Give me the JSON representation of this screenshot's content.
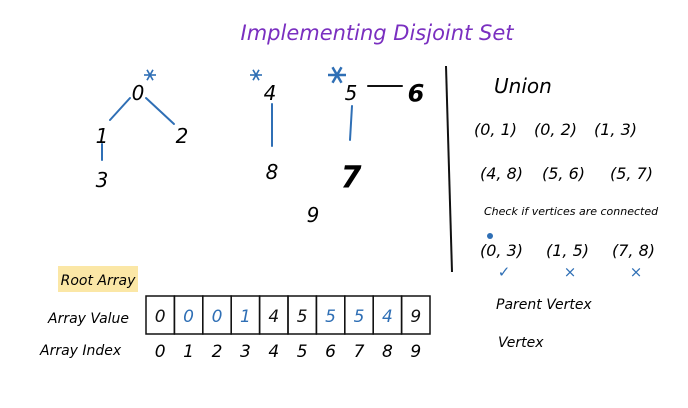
{
  "title": "Implementing Disjoint Set",
  "tree": {
    "nodes": [
      {
        "id": "n0",
        "label": "0",
        "root": true
      },
      {
        "id": "n1",
        "label": "1",
        "root": false
      },
      {
        "id": "n2",
        "label": "2",
        "root": false
      },
      {
        "id": "n3",
        "label": "3",
        "root": false
      },
      {
        "id": "n4",
        "label": "4",
        "root": true
      },
      {
        "id": "n8",
        "label": "8",
        "root": false
      },
      {
        "id": "n5",
        "label": "5",
        "root": true
      },
      {
        "id": "n6",
        "label": "6",
        "root": false
      },
      {
        "id": "n7",
        "label": "7",
        "root": false
      },
      {
        "id": "n9",
        "label": "9",
        "root": false
      }
    ],
    "edges": [
      {
        "from": "n0",
        "to": "n1"
      },
      {
        "from": "n0",
        "to": "n2"
      },
      {
        "from": "n1",
        "to": "n3"
      },
      {
        "from": "n4",
        "to": "n8"
      },
      {
        "from": "n5",
        "to": "n6"
      },
      {
        "from": "n5",
        "to": "n7"
      }
    ],
    "edge_color": "#2f6fb5",
    "root_marker_color": "#2f6fb5"
  },
  "union": {
    "heading": "Union",
    "rows": [
      [
        "(0, 1)",
        "(0, 2)",
        "(1, 3)"
      ],
      [
        "(4, 8)",
        "(5, 6)",
        "(5, 7)"
      ]
    ]
  },
  "check": {
    "heading": "Check if vertices are connected",
    "pairs": [
      {
        "text": "(0, 3)",
        "mark": "✓"
      },
      {
        "text": "(1, 5)",
        "mark": "×"
      },
      {
        "text": "(7, 8)",
        "mark": "×"
      }
    ],
    "mark_color": "#2f6fb5"
  },
  "root_array": {
    "label": "Root Array",
    "highlight_color": "#fbe7a6",
    "value_label": "Array Value",
    "index_label": "Array Index",
    "values": [
      "0",
      "0",
      "0",
      "1",
      "4",
      "5",
      "5",
      "5",
      "4",
      "9"
    ],
    "changed": [
      false,
      true,
      true,
      true,
      false,
      false,
      true,
      true,
      true,
      false
    ],
    "indices": [
      "0",
      "1",
      "2",
      "3",
      "4",
      "5",
      "6",
      "7",
      "8",
      "9"
    ],
    "changed_color": "#2f6fb5"
  },
  "legend": {
    "parent": "Parent Vertex",
    "vertex": "Vertex"
  },
  "title_color": "#7a2fc0"
}
